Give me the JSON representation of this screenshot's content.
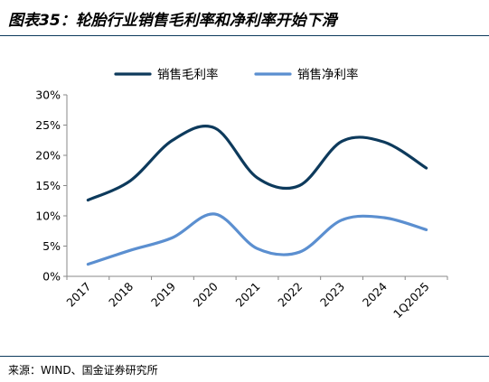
{
  "header": {
    "title": "图表35：轮胎行业销售毛利率和净利率开始下滑"
  },
  "footer": {
    "source": "来源：WIND、国金证券研究所"
  },
  "colors": {
    "gross": "#0d3a5c",
    "net": "#5b8fd0",
    "rule": "#0d3a5c",
    "axis": "#888888"
  },
  "chart_data": {
    "type": "line",
    "title": "",
    "xlabel": "",
    "ylabel": "",
    "categories": [
      "2017",
      "2018",
      "2019",
      "2020",
      "2021",
      "2022",
      "2023",
      "2024",
      "1Q2025"
    ],
    "ylim": [
      0,
      30
    ],
    "yticks": [
      0,
      5,
      10,
      15,
      20,
      25,
      30
    ],
    "ytick_labels": [
      "0%",
      "5%",
      "10%",
      "15%",
      "20%",
      "25%",
      "30%"
    ],
    "smooth": true,
    "grid": false,
    "legend_position": "top",
    "series": [
      {
        "name": "销售毛利率",
        "color": "#0d3a5c",
        "values": [
          12.6,
          15.8,
          22.5,
          24.5,
          16.3,
          15.0,
          22.3,
          22.2,
          17.9
        ]
      },
      {
        "name": "销售净利率",
        "color": "#5b8fd0",
        "values": [
          2.0,
          4.3,
          6.4,
          10.3,
          4.6,
          4.0,
          9.3,
          9.7,
          7.7
        ]
      }
    ]
  }
}
